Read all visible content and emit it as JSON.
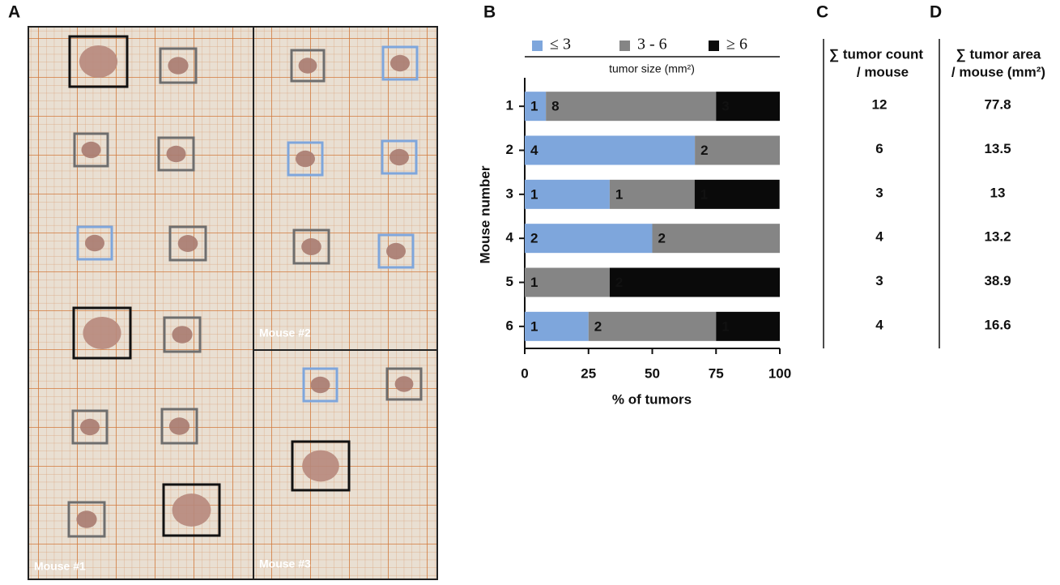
{
  "panel_labels": [
    "A",
    "B",
    "C",
    "D"
  ],
  "photo": {
    "labels": [
      "Mouse #1",
      "Mouse #2",
      "Mouse #3"
    ]
  },
  "chart_data": {
    "type": "bar",
    "orientation": "horizontal",
    "stacked": true,
    "categories": [
      "1",
      "2",
      "3",
      "4",
      "5",
      "6"
    ],
    "series": [
      {
        "name": "≤ 3",
        "color": "#7ea6dc",
        "values": [
          8.3,
          66.7,
          33.3,
          50,
          0,
          25
        ],
        "counts": [
          1,
          4,
          1,
          2,
          null,
          1
        ]
      },
      {
        "name": "3 - 6",
        "color": "#858585",
        "values": [
          66.7,
          33.3,
          33.3,
          50,
          33.3,
          50
        ],
        "counts": [
          8,
          2,
          1,
          2,
          1,
          2
        ]
      },
      {
        "name": "≥ 6",
        "color": "#0a0a0a",
        "values": [
          25,
          0,
          33.3,
          0,
          66.7,
          25
        ],
        "counts": [
          3,
          null,
          1,
          null,
          2,
          1
        ]
      }
    ],
    "legend_title": "tumor size (mm²)",
    "xlim": [
      0,
      100
    ],
    "xticks": [
      0,
      25,
      50,
      75,
      100
    ],
    "xlabel": "% of tumors",
    "ylabel": "Mouse number"
  },
  "table_c": {
    "header": [
      "∑ tumor count",
      "/ mouse"
    ],
    "values": [
      12,
      6,
      3,
      4,
      3,
      4
    ]
  },
  "table_d": {
    "header": [
      "∑ tumor area",
      "/ mouse (mm²)"
    ],
    "values": [
      77.8,
      13.5,
      13,
      13.2,
      38.9,
      16.6
    ]
  }
}
